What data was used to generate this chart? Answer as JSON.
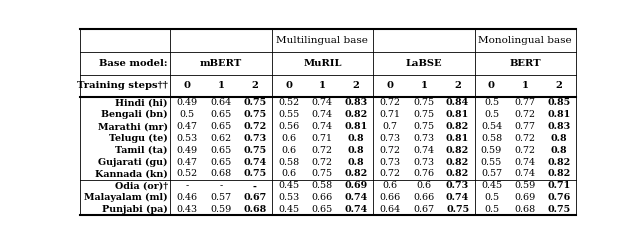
{
  "header_row2": [
    "Training steps††",
    "0",
    "1",
    "2",
    "0",
    "1",
    "2",
    "0",
    "1",
    "2",
    "0",
    "1",
    "2"
  ],
  "rows": [
    [
      "Hindi (hi)",
      "0.49",
      "0.64",
      "0.75",
      "0.52",
      "0.74",
      "0.83",
      "0.72",
      "0.75",
      "0.84",
      "0.5",
      "0.77",
      "0.85"
    ],
    [
      "Bengali (bn)",
      "0.5",
      "0.65",
      "0.75",
      "0.55",
      "0.74",
      "0.82",
      "0.71",
      "0.75",
      "0.81",
      "0.5",
      "0.72",
      "0.81"
    ],
    [
      "Marathi (mr)",
      "0.47",
      "0.65",
      "0.72",
      "0.56",
      "0.74",
      "0.81",
      "0.7",
      "0.75",
      "0.82",
      "0.54",
      "0.77",
      "0.83"
    ],
    [
      "Telugu (te)",
      "0.53",
      "0.62",
      "0.73",
      "0.6",
      "0.71",
      "0.8",
      "0.73",
      "0.73",
      "0.81",
      "0.58",
      "0.72",
      "0.8"
    ],
    [
      "Tamil (ta)",
      "0.49",
      "0.65",
      "0.75",
      "0.6",
      "0.72",
      "0.8",
      "0.72",
      "0.74",
      "0.82",
      "0.59",
      "0.72",
      "0.8"
    ],
    [
      "Gujarati (gu)",
      "0.47",
      "0.65",
      "0.74",
      "0.58",
      "0.72",
      "0.8",
      "0.73",
      "0.73",
      "0.82",
      "0.55",
      "0.74",
      "0.82"
    ],
    [
      "Kannada (kn)",
      "0.52",
      "0.68",
      "0.75",
      "0.6",
      "0.75",
      "0.82",
      "0.72",
      "0.76",
      "0.82",
      "0.57",
      "0.74",
      "0.82"
    ],
    [
      "Odia (or)†",
      "-",
      "-",
      "-",
      "0.45",
      "0.58",
      "0.69",
      "0.6",
      "0.6",
      "0.73",
      "0.45",
      "0.59",
      "0.71"
    ],
    [
      "Malayalam (ml)",
      "0.46",
      "0.57",
      "0.67",
      "0.53",
      "0.66",
      "0.74",
      "0.66",
      "0.66",
      "0.74",
      "0.5",
      "0.69",
      "0.76"
    ],
    [
      "Punjabi (pa)",
      "0.43",
      "0.59",
      "0.68",
      "0.45",
      "0.65",
      "0.74",
      "0.64",
      "0.67",
      "0.75",
      "0.5",
      "0.68",
      "0.75"
    ]
  ],
  "bold_col_indices": [
    3,
    6,
    9,
    12
  ],
  "figsize": [
    6.4,
    2.42
  ],
  "dpi": 100
}
